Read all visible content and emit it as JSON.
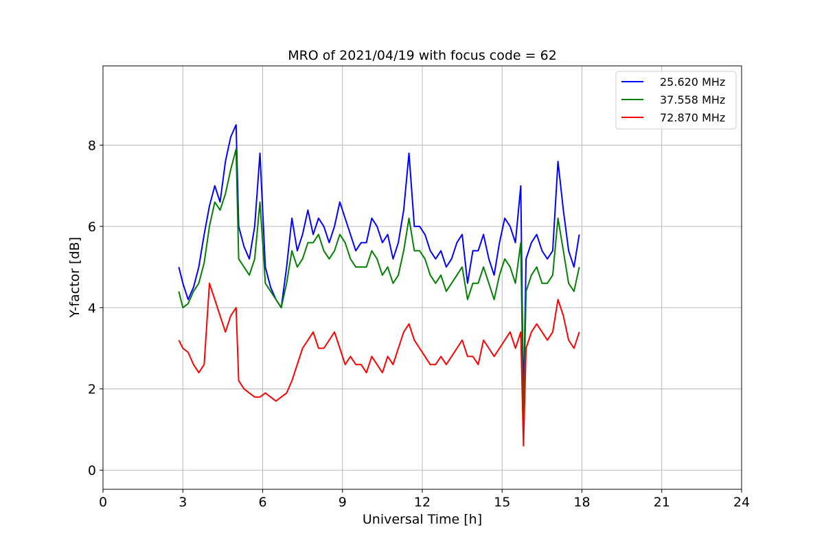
{
  "chart_data": {
    "type": "line",
    "title": "MRO of 2021/04/19 with focus code = 62",
    "xlabel": "Universal Time [h]",
    "ylabel": "Y-factor [dB]",
    "xlim": [
      0,
      24
    ],
    "ylim": [
      -0.47,
      9.95
    ],
    "xticks": [
      0,
      3,
      6,
      9,
      12,
      15,
      18,
      21,
      24
    ],
    "yticks": [
      0,
      2,
      4,
      6,
      8
    ],
    "grid": true,
    "legend_position": "top-right",
    "series": [
      {
        "name": "25.620 MHz",
        "color": "#0000ff",
        "x": [
          2.85,
          3.0,
          3.2,
          3.4,
          3.6,
          3.8,
          4.0,
          4.2,
          4.4,
          4.6,
          4.8,
          5.0,
          5.1,
          5.3,
          5.5,
          5.7,
          5.9,
          6.1,
          6.3,
          6.5,
          6.7,
          6.9,
          7.1,
          7.3,
          7.5,
          7.7,
          7.9,
          8.1,
          8.3,
          8.5,
          8.7,
          8.9,
          9.1,
          9.3,
          9.5,
          9.7,
          9.9,
          10.1,
          10.3,
          10.5,
          10.7,
          10.9,
          11.1,
          11.3,
          11.5,
          11.7,
          11.9,
          12.1,
          12.3,
          12.5,
          12.7,
          12.9,
          13.1,
          13.3,
          13.5,
          13.7,
          13.9,
          14.1,
          14.3,
          14.5,
          14.7,
          14.9,
          15.1,
          15.3,
          15.5,
          15.7,
          15.8,
          15.9,
          16.1,
          16.3,
          16.5,
          16.7,
          16.9,
          17.1,
          17.3,
          17.5,
          17.7,
          17.9
        ],
        "y": [
          5.0,
          4.6,
          4.2,
          4.5,
          5.0,
          5.8,
          6.5,
          7.0,
          6.6,
          7.6,
          8.2,
          8.5,
          6.0,
          5.5,
          5.2,
          6.0,
          7.8,
          5.0,
          4.5,
          4.2,
          4.0,
          5.0,
          6.2,
          5.4,
          5.8,
          6.4,
          5.8,
          6.2,
          6.0,
          5.6,
          6.0,
          6.6,
          6.2,
          5.8,
          5.4,
          5.6,
          5.6,
          6.2,
          6.0,
          5.6,
          5.8,
          5.2,
          5.6,
          6.4,
          7.8,
          6.0,
          6.0,
          5.8,
          5.4,
          5.2,
          5.4,
          5.0,
          5.2,
          5.6,
          5.8,
          4.6,
          5.4,
          5.4,
          5.8,
          5.2,
          4.8,
          5.6,
          6.2,
          6.0,
          5.6,
          7.0,
          1.5,
          5.2,
          5.6,
          5.8,
          5.4,
          5.2,
          5.4,
          7.6,
          6.4,
          5.4,
          5.0,
          5.8
        ]
      },
      {
        "name": "37.558 MHz",
        "color": "#008000",
        "x": [
          2.85,
          3.0,
          3.2,
          3.4,
          3.6,
          3.8,
          4.0,
          4.2,
          4.4,
          4.6,
          4.8,
          5.0,
          5.1,
          5.3,
          5.5,
          5.7,
          5.9,
          6.1,
          6.3,
          6.5,
          6.7,
          6.9,
          7.1,
          7.3,
          7.5,
          7.7,
          7.9,
          8.1,
          8.3,
          8.5,
          8.7,
          8.9,
          9.1,
          9.3,
          9.5,
          9.7,
          9.9,
          10.1,
          10.3,
          10.5,
          10.7,
          10.9,
          11.1,
          11.3,
          11.5,
          11.7,
          11.9,
          12.1,
          12.3,
          12.5,
          12.7,
          12.9,
          13.1,
          13.3,
          13.5,
          13.7,
          13.9,
          14.1,
          14.3,
          14.5,
          14.7,
          14.9,
          15.1,
          15.3,
          15.5,
          15.7,
          15.8,
          15.9,
          16.1,
          16.3,
          16.5,
          16.7,
          16.9,
          17.1,
          17.3,
          17.5,
          17.7,
          17.9
        ],
        "y": [
          4.4,
          4.0,
          4.1,
          4.4,
          4.6,
          5.1,
          6.0,
          6.6,
          6.4,
          6.8,
          7.4,
          7.9,
          5.2,
          5.0,
          4.8,
          5.2,
          6.6,
          4.6,
          4.4,
          4.2,
          4.0,
          4.6,
          5.4,
          5.0,
          5.2,
          5.6,
          5.6,
          5.8,
          5.4,
          5.2,
          5.4,
          5.8,
          5.6,
          5.2,
          5.0,
          5.0,
          5.0,
          5.4,
          5.2,
          4.8,
          5.0,
          4.6,
          4.8,
          5.4,
          6.2,
          5.4,
          5.4,
          5.2,
          4.8,
          4.6,
          4.8,
          4.4,
          4.6,
          4.8,
          5.0,
          4.2,
          4.6,
          4.6,
          5.0,
          4.6,
          4.2,
          4.8,
          5.2,
          5.0,
          4.6,
          5.6,
          1.2,
          4.4,
          4.8,
          5.0,
          4.6,
          4.6,
          4.8,
          6.2,
          5.4,
          4.6,
          4.4,
          5.0
        ]
      },
      {
        "name": "72.870 MHz",
        "color": "#ff0000",
        "x": [
          2.85,
          3.0,
          3.2,
          3.4,
          3.6,
          3.8,
          4.0,
          4.2,
          4.4,
          4.6,
          4.8,
          5.0,
          5.1,
          5.3,
          5.5,
          5.7,
          5.9,
          6.1,
          6.3,
          6.5,
          6.7,
          6.9,
          7.1,
          7.3,
          7.5,
          7.7,
          7.9,
          8.1,
          8.3,
          8.5,
          8.7,
          8.9,
          9.1,
          9.3,
          9.5,
          9.7,
          9.9,
          10.1,
          10.3,
          10.5,
          10.7,
          10.9,
          11.1,
          11.3,
          11.5,
          11.7,
          11.9,
          12.1,
          12.3,
          12.5,
          12.7,
          12.9,
          13.1,
          13.3,
          13.5,
          13.7,
          13.9,
          14.1,
          14.3,
          14.5,
          14.7,
          14.9,
          15.1,
          15.3,
          15.5,
          15.7,
          15.8,
          15.9,
          16.1,
          16.3,
          16.5,
          16.7,
          16.9,
          17.1,
          17.3,
          17.5,
          17.7,
          17.9
        ],
        "y": [
          3.2,
          3.0,
          2.9,
          2.6,
          2.4,
          2.6,
          4.6,
          4.2,
          3.8,
          3.4,
          3.8,
          4.0,
          2.2,
          2.0,
          1.9,
          1.8,
          1.8,
          1.9,
          1.8,
          1.7,
          1.8,
          1.9,
          2.2,
          2.6,
          3.0,
          3.2,
          3.4,
          3.0,
          3.0,
          3.2,
          3.4,
          3.0,
          2.6,
          2.8,
          2.6,
          2.6,
          2.4,
          2.8,
          2.6,
          2.4,
          2.8,
          2.6,
          3.0,
          3.4,
          3.6,
          3.2,
          3.0,
          2.8,
          2.6,
          2.6,
          2.8,
          2.6,
          2.8,
          3.0,
          3.2,
          2.8,
          2.8,
          2.6,
          3.2,
          3.0,
          2.8,
          3.0,
          3.2,
          3.4,
          3.0,
          3.4,
          0.6,
          3.0,
          3.4,
          3.6,
          3.4,
          3.2,
          3.4,
          4.2,
          3.8,
          3.2,
          3.0,
          3.4
        ]
      }
    ]
  }
}
